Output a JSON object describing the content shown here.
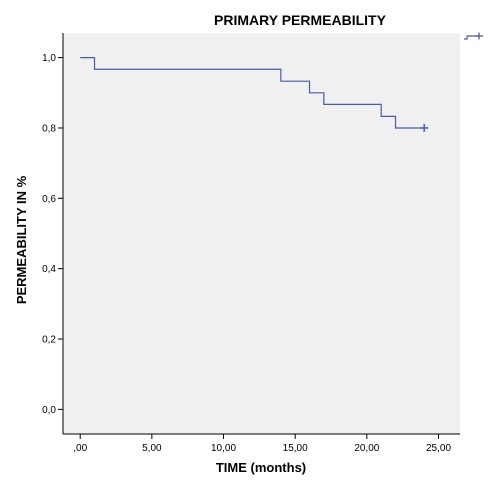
{
  "chart_data": {
    "type": "line",
    "title": "PRIMARY PERMEABILITY",
    "xlabel": "TIME (months)",
    "ylabel": "PERMEABILITY IN %",
    "xlim": [
      -1.2,
      26.5
    ],
    "ylim": [
      -0.07,
      1.07
    ],
    "x_ticks": [
      0,
      5,
      10,
      15,
      20,
      25
    ],
    "x_tick_labels": [
      ",00",
      "5,00",
      "10,00",
      "15,00",
      "20,00",
      "25,00"
    ],
    "y_ticks": [
      0,
      0.2,
      0.4,
      0.6,
      0.8,
      1.0
    ],
    "y_tick_labels": [
      "0,0",
      "0,2",
      "0,4",
      "0,6",
      "0,8",
      "1,0"
    ],
    "grid": false,
    "legend": "top-right",
    "series": [
      {
        "step": "post",
        "x": [
          0,
          1,
          14,
          16,
          17,
          21,
          22,
          24
        ],
        "y": [
          1.0,
          0.967,
          0.933,
          0.9,
          0.867,
          0.833,
          0.8,
          0.8
        ],
        "censored": [
          {
            "x": 24,
            "y": 0.8
          }
        ]
      }
    ],
    "colors": {
      "line": "#4a5ba8",
      "plot_background": "#f0f0f0",
      "axis": "#000000"
    }
  }
}
